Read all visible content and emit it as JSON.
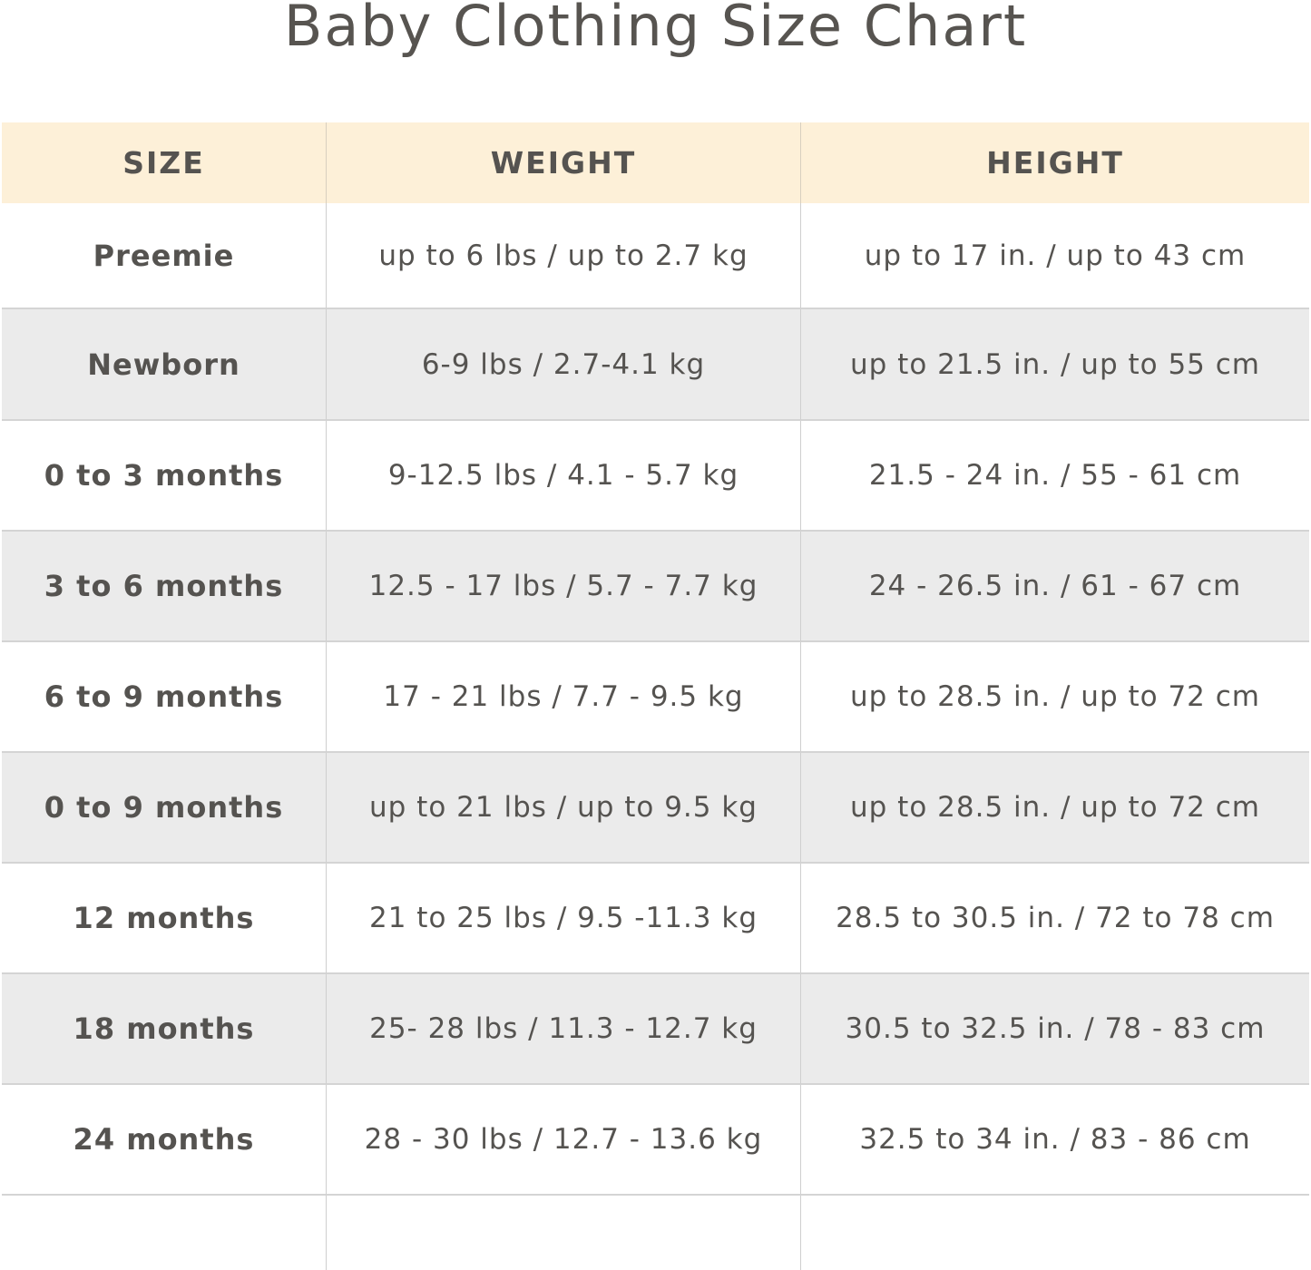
{
  "title": "Baby Clothing Size Chart",
  "colors": {
    "header_bg": "#fdf0d8",
    "stripe_bg": "#ebebeb",
    "text": "#555350"
  },
  "headers": [
    "SIZE",
    "WEIGHT",
    "HEIGHT"
  ],
  "rows": [
    {
      "size": "Preemie",
      "weight": "up to 6 lbs / up to 2.7 kg",
      "height": "up to 17 in. / up to 43 cm"
    },
    {
      "size": "Newborn",
      "weight": "6-9 lbs / 2.7-4.1 kg",
      "height": "up to 21.5 in. / up to 55 cm"
    },
    {
      "size": "0 to 3 months",
      "weight": "9-12.5 lbs / 4.1 - 5.7 kg",
      "height": "21.5 - 24 in. / 55 - 61 cm"
    },
    {
      "size": "3 to 6 months",
      "weight": "12.5 - 17 lbs / 5.7 - 7.7 kg",
      "height": "24 - 26.5 in. / 61 - 67 cm"
    },
    {
      "size": "6 to 9 months",
      "weight": "17 - 21 lbs / 7.7 - 9.5 kg",
      "height": "up to 28.5 in. / up to 72 cm"
    },
    {
      "size": "0 to 9 months",
      "weight": "up to 21 lbs / up to 9.5 kg",
      "height": "up to 28.5 in. / up to 72 cm"
    },
    {
      "size": "12 months",
      "weight": "21 to 25 lbs / 9.5 -11.3 kg",
      "height": "28.5 to 30.5 in. / 72 to 78 cm"
    },
    {
      "size": "18 months",
      "weight": "25- 28 lbs / 11.3 - 12.7 kg",
      "height": "30.5 to 32.5 in. / 78 - 83 cm"
    },
    {
      "size": "24 months",
      "weight": "28 - 30 lbs / 12.7 - 13.6 kg",
      "height": "32.5 to 34 in. / 83 - 86 cm"
    }
  ]
}
